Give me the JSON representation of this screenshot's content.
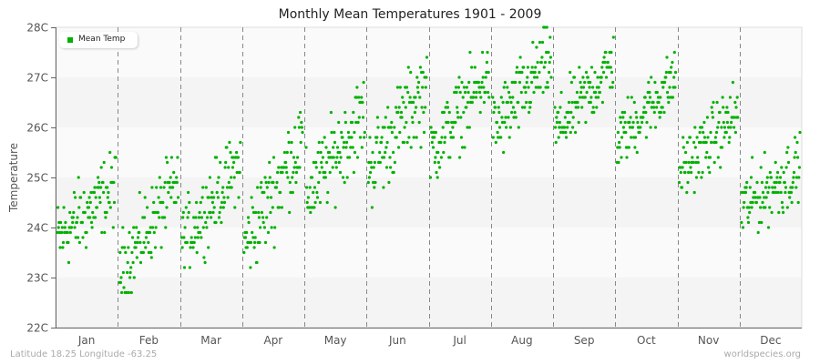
{
  "title": "Monthly Mean Temperatures 1901 - 2009",
  "footer": {
    "left": "Latitude 18.25 Longitude -63.25",
    "right": "worldspecies.org"
  },
  "legend": {
    "label": "Mean Temp",
    "color": "#00b200"
  },
  "colors": {
    "point": "#00b200",
    "band_dark": "#f4f4f4",
    "band_light": "#fafafa",
    "axis": "#666666",
    "divider": "#888888",
    "tick_text": "#555555"
  },
  "chart_data": {
    "type": "scatter",
    "title": "Monthly Mean Temperatures 1901 - 2009",
    "xlabel": "",
    "ylabel": "Temperature",
    "ylim": [
      22,
      28
    ],
    "yticks": [
      "22C",
      "23C",
      "24C",
      "25C",
      "26C",
      "27C",
      "28C"
    ],
    "categories": [
      "Jan",
      "Feb",
      "Mar",
      "Apr",
      "May",
      "Jun",
      "Jul",
      "Aug",
      "Sep",
      "Oct",
      "Nov",
      "Dec"
    ],
    "grid": "alternating horizontal bands, dashed vertical month dividers",
    "legend_position": "top-left inside plot",
    "series": [
      {
        "name": "Mean Temp",
        "note": "Each month shows ~109 yearly values (1901-2009), spread left-to-right by year with a rising trend",
        "ranges": [
          {
            "month": "Jan",
            "min": 22.9,
            "max": 25.5,
            "start": 23.8,
            "end": 24.8
          },
          {
            "month": "Feb",
            "min": 22.7,
            "max": 25.4,
            "start": 23.1,
            "end": 24.9
          },
          {
            "month": "Mar",
            "min": 23.2,
            "max": 25.7,
            "start": 23.7,
            "end": 25.3
          },
          {
            "month": "Apr",
            "min": 23.2,
            "max": 26.3,
            "start": 23.6,
            "end": 25.8
          },
          {
            "month": "May",
            "min": 24.0,
            "max": 26.9,
            "start": 24.6,
            "end": 26.3
          },
          {
            "month": "Jun",
            "min": 24.4,
            "max": 27.4,
            "start": 25.2,
            "end": 26.8
          },
          {
            "month": "Jul",
            "min": 25.0,
            "max": 27.5,
            "start": 25.5,
            "end": 27.1
          },
          {
            "month": "Aug",
            "min": 25.3,
            "max": 28.0,
            "start": 25.9,
            "end": 27.4
          },
          {
            "month": "Sep",
            "min": 25.5,
            "max": 27.8,
            "start": 25.9,
            "end": 27.3
          },
          {
            "month": "Oct",
            "min": 25.3,
            "max": 27.5,
            "start": 25.7,
            "end": 27.0
          },
          {
            "month": "Nov",
            "min": 24.7,
            "max": 27.0,
            "start": 25.1,
            "end": 26.3
          },
          {
            "month": "Dec",
            "min": 23.7,
            "max": 26.1,
            "start": 24.4,
            "end": 25.2
          }
        ]
      }
    ]
  }
}
